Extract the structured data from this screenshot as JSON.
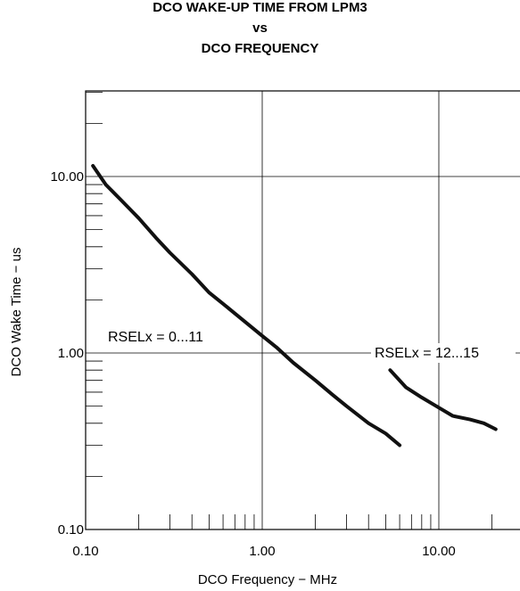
{
  "chart_data": {
    "type": "line",
    "title_lines": [
      "DCO WAKE-UP TIME FROM LPM3",
      "vs",
      "DCO FREQUENCY"
    ],
    "xlabel": "DCO Frequency − MHz",
    "ylabel": "DCO Wake Time − us",
    "xscale": "log",
    "yscale": "log",
    "xlim": [
      0.1,
      24
    ],
    "ylim": [
      0.1,
      30
    ],
    "x_tick_labels": [
      "0.10",
      "1.00",
      "10.00"
    ],
    "x_tick_values": [
      0.1,
      1,
      10
    ],
    "y_tick_labels": [
      "0.10",
      "1.00",
      "10.00"
    ],
    "y_tick_values": [
      0.1,
      1,
      10
    ],
    "grid": true,
    "series": [
      {
        "name": "RSELx = 0...11",
        "x": [
          0.11,
          0.13,
          0.16,
          0.2,
          0.25,
          0.3,
          0.4,
          0.5,
          0.6,
          0.8,
          1.0,
          1.2,
          1.5,
          2.0,
          2.5,
          3.0,
          4.0,
          5.0,
          6.0
        ],
        "y": [
          11.5,
          9.0,
          7.3,
          5.8,
          4.5,
          3.7,
          2.8,
          2.2,
          1.9,
          1.5,
          1.25,
          1.08,
          0.88,
          0.7,
          0.58,
          0.5,
          0.4,
          0.35,
          0.3
        ]
      },
      {
        "name": "RSELx = 12...15",
        "x": [
          5.3,
          6.5,
          8.0,
          10.0,
          12.0,
          15.0,
          18.0,
          21.0
        ],
        "y": [
          0.8,
          0.64,
          0.56,
          0.49,
          0.44,
          0.42,
          0.4,
          0.37
        ]
      }
    ],
    "annotations": [
      {
        "text": "RSELx = 0...11",
        "series": 0
      },
      {
        "text": "RSELx = 12...15",
        "series": 1
      }
    ],
    "line_color": "#111111"
  }
}
